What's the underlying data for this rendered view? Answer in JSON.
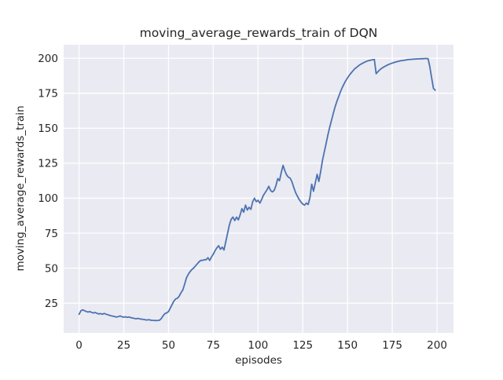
{
  "chart_data": {
    "type": "line",
    "title": "moving_average_rewards_train of DQN",
    "xlabel": "episodes",
    "ylabel": "moving_average_rewards_train",
    "x_ticks": [
      0,
      25,
      50,
      75,
      100,
      125,
      150,
      175,
      200
    ],
    "y_ticks": [
      25,
      50,
      75,
      100,
      125,
      150,
      175,
      200
    ],
    "xlim": [
      -8.6,
      209.2
    ],
    "ylim": [
      3.7,
      209.7
    ],
    "grid": true,
    "legend_position": "none",
    "style": {
      "figure_background": "#FFFFFF",
      "axes_background": "#EAEAF2",
      "grid_color": "#FFFFFF",
      "line_color": "#4C72B0",
      "text_color": "#262626"
    },
    "series": [
      {
        "name": "moving average rewards (train) of DQN",
        "x_start": 0,
        "x_step": 1,
        "y": [
          17.0,
          19.5,
          20.2,
          19.6,
          19.0,
          18.6,
          18.9,
          18.4,
          17.9,
          18.3,
          17.7,
          17.2,
          17.5,
          17.0,
          17.6,
          17.1,
          16.7,
          16.3,
          15.9,
          15.6,
          15.3,
          15.0,
          15.4,
          15.8,
          15.2,
          14.9,
          15.2,
          14.8,
          15.1,
          14.6,
          14.3,
          14.0,
          13.8,
          14.1,
          13.7,
          13.5,
          13.3,
          13.1,
          12.9,
          13.2,
          12.8,
          12.7,
          12.6,
          12.5,
          12.6,
          12.8,
          14.0,
          16.0,
          17.5,
          18.0,
          19.0,
          21.5,
          24.0,
          26.5,
          28.0,
          28.5,
          30.0,
          32.5,
          34.5,
          38.5,
          43.0,
          45.5,
          47.5,
          49.0,
          50.0,
          51.5,
          53.0,
          54.5,
          55.5,
          55.5,
          56.0,
          56.0,
          57.5,
          55.5,
          58.0,
          60.0,
          62.5,
          64.5,
          66.0,
          63.5,
          65.0,
          63.0,
          69.0,
          75.0,
          81.0,
          85.0,
          86.5,
          84.0,
          86.5,
          84.5,
          88.0,
          92.5,
          90.0,
          95.0,
          91.5,
          93.5,
          92.0,
          97.5,
          100.0,
          97.5,
          98.5,
          96.5,
          99.0,
          102.0,
          104.0,
          106.0,
          108.5,
          105.5,
          104.5,
          105.5,
          109.0,
          114.0,
          112.5,
          118.5,
          123.5,
          119.5,
          116.5,
          115.0,
          114.3,
          111.5,
          107.5,
          104.0,
          101.5,
          99.0,
          97.2,
          95.8,
          95.0,
          96.5,
          95.5,
          100.5,
          110.0,
          105.0,
          111.0,
          117.0,
          112.0,
          119.0,
          127.0,
          133.0,
          139.0,
          145.0,
          150.5,
          155.5,
          160.5,
          165.0,
          169.0,
          172.5,
          176.0,
          179.0,
          181.5,
          184.0,
          186.0,
          188.0,
          189.5,
          191.0,
          192.5,
          193.5,
          194.5,
          195.5,
          196.2,
          196.9,
          197.5,
          198.0,
          198.4,
          198.7,
          199.0,
          199.2,
          189.0,
          190.5,
          191.8,
          192.8,
          193.6,
          194.3,
          195.0,
          195.6,
          196.1,
          196.6,
          197.0,
          197.4,
          197.7,
          198.0,
          198.3,
          198.5,
          198.7,
          198.9,
          199.1,
          199.2,
          199.3,
          199.4,
          199.5,
          199.6,
          199.6,
          199.7,
          199.7,
          199.8,
          199.9,
          199.7,
          194.0,
          186.0,
          178.5,
          177.2
        ]
      }
    ]
  }
}
